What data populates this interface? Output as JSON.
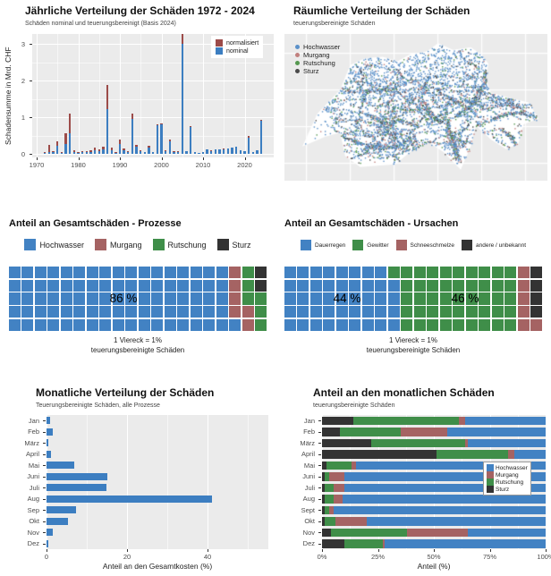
{
  "background": "#FFFFFF",
  "panel_bg": "#EBEBEB",
  "chart_data": [
    {
      "type": "bar",
      "title": "Jährliche Verteilung der Schäden 1972 - 2024",
      "subtitle": "Schäden nominal und teuerungsbereinigt (Basis 2024)",
      "ylabel": "Schadensumme in Mrd. CHF",
      "years": [
        1972,
        1973,
        1974,
        1975,
        1976,
        1977,
        1978,
        1979,
        1980,
        1981,
        1982,
        1983,
        1984,
        1985,
        1986,
        1987,
        1988,
        1989,
        1990,
        1991,
        1992,
        1993,
        1994,
        1995,
        1996,
        1997,
        1998,
        1999,
        2000,
        2001,
        2002,
        2003,
        2004,
        2005,
        2006,
        2007,
        2008,
        2009,
        2010,
        2011,
        2012,
        2013,
        2014,
        2015,
        2016,
        2017,
        2018,
        2019,
        2020,
        2021,
        2022,
        2023,
        2024
      ],
      "series": [
        {
          "name": "normalisiert",
          "color": "#9C4B49",
          "values": [
            0.05,
            0.24,
            0.07,
            0.33,
            0.05,
            0.55,
            1.1,
            0.1,
            0.05,
            0.08,
            0.07,
            0.09,
            0.17,
            0.12,
            0.2,
            1.88,
            0.18,
            0.05,
            0.38,
            0.15,
            0.08,
            1.1,
            0.25,
            0.1,
            0.05,
            0.22,
            0.05,
            0.8,
            0.83,
            0.1,
            0.38,
            0.07,
            0.07,
            3.3,
            0.08,
            0.76,
            0.05,
            0.03,
            0.04,
            0.12,
            0.09,
            0.12,
            0.13,
            0.14,
            0.15,
            0.17,
            0.2,
            0.1,
            0.07,
            0.48,
            0.05,
            0.1,
            0.92
          ]
        },
        {
          "name": "nominal",
          "color": "#3C7EC1",
          "values": [
            0.03,
            0.06,
            0.05,
            0.22,
            0.03,
            0.28,
            0.55,
            0.05,
            0.03,
            0.05,
            0.05,
            0.06,
            0.1,
            0.07,
            0.12,
            1.22,
            0.1,
            0.03,
            0.27,
            0.1,
            0.05,
            0.95,
            0.2,
            0.08,
            0.04,
            0.18,
            0.04,
            0.77,
            0.8,
            0.08,
            0.35,
            0.06,
            0.06,
            3.0,
            0.07,
            0.73,
            0.04,
            0.03,
            0.04,
            0.11,
            0.08,
            0.11,
            0.12,
            0.13,
            0.14,
            0.16,
            0.19,
            0.09,
            0.07,
            0.45,
            0.05,
            0.1,
            0.9
          ]
        }
      ],
      "xticks": [
        1970,
        1980,
        1990,
        2000,
        2010,
        2020
      ],
      "yticks": [
        0,
        1,
        2,
        3
      ],
      "ylim": [
        0,
        3.4
      ]
    },
    {
      "type": "scatter",
      "title": "Räumliche Verteilung der Schäden",
      "subtitle": "teuerungsbereinigte Schäden",
      "description": "Point map of Switzerland, damage locations colored by process",
      "legend": [
        {
          "label": "Hochwasser",
          "color": "#5B91C9"
        },
        {
          "label": "Murgang",
          "color": "#C1807E"
        },
        {
          "label": "Rutschung",
          "color": "#55984F"
        },
        {
          "label": "Sturz",
          "color": "#4A4A4A"
        }
      ],
      "outline": [
        [
          0.05,
          0.79
        ],
        [
          0.11,
          0.55
        ],
        [
          0.2,
          0.38
        ],
        [
          0.24,
          0.2
        ],
        [
          0.3,
          0.15
        ],
        [
          0.37,
          0.14
        ],
        [
          0.43,
          0.17
        ],
        [
          0.48,
          0.12
        ],
        [
          0.545,
          0.1
        ],
        [
          0.59,
          0.04
        ],
        [
          0.65,
          0.09
        ],
        [
          0.72,
          0.07
        ],
        [
          0.76,
          0.12
        ],
        [
          0.79,
          0.19
        ],
        [
          0.78,
          0.3
        ],
        [
          0.8,
          0.4
        ],
        [
          0.88,
          0.44
        ],
        [
          0.95,
          0.47
        ],
        [
          0.99,
          0.59
        ],
        [
          0.93,
          0.63
        ],
        [
          0.91,
          0.77
        ],
        [
          0.86,
          0.81
        ],
        [
          0.8,
          0.74
        ],
        [
          0.74,
          0.64
        ],
        [
          0.72,
          0.79
        ],
        [
          0.68,
          0.96
        ],
        [
          0.61,
          0.83
        ],
        [
          0.55,
          0.76
        ],
        [
          0.48,
          0.83
        ],
        [
          0.42,
          0.92
        ],
        [
          0.28,
          0.94
        ],
        [
          0.22,
          0.86
        ],
        [
          0.2,
          0.69
        ],
        [
          0.14,
          0.72
        ]
      ]
    },
    {
      "type": "waffle",
      "title": "Anteil an Gesamtschäden - Prozesse",
      "grid": {
        "cols": 20,
        "rows": 5
      },
      "categories": [
        {
          "label": "Hochwasser",
          "color": "#4282C3",
          "value": 86
        },
        {
          "label": "Murgang",
          "color": "#A56363",
          "value": 6
        },
        {
          "label": "Rutschung",
          "color": "#3F8E49",
          "value": 6
        },
        {
          "label": "Sturz",
          "color": "#333333",
          "value": 2
        }
      ],
      "annotation": "86 %",
      "caption_line1": "1 Viereck = 1%",
      "caption_line2": "teuerungsbereinigte Schäden"
    },
    {
      "type": "waffle",
      "title": "Anteil an Gesamtschäden - Ursachen",
      "grid": {
        "cols": 20,
        "rows": 5
      },
      "categories": [
        {
          "label": "Dauerregen",
          "color": "#4282C3",
          "value": 44
        },
        {
          "label": "Gewitter",
          "color": "#3F8E49",
          "value": 46
        },
        {
          "label": "Schneeschmelze",
          "color": "#A56363",
          "value": 6
        },
        {
          "label": "andere / unbekannt",
          "color": "#333333",
          "value": 4
        }
      ],
      "annotations": [
        "44 %",
        "46 %"
      ],
      "caption_line1": "1 Viereck = 1%",
      "caption_line2": "teuerungsbereinigte Schäden"
    },
    {
      "type": "bar",
      "title": "Monatliche Verteilung der Schäden",
      "subtitle": "Teuerungsbereinigte Schäden, alle Prozesse",
      "xlabel": "Anteil an den Gesamtkosten (%)",
      "categories": [
        "Jan",
        "Feb",
        "März",
        "April",
        "Mai",
        "Juni",
        "Juli",
        "Aug",
        "Sep",
        "Okt",
        "Nov",
        "Dez"
      ],
      "values": [
        0.9,
        1.6,
        0.4,
        1.2,
        6.9,
        15.1,
        14.9,
        41,
        7.3,
        5.3,
        1.6,
        0.5
      ],
      "bar_color": "#3C7EC1",
      "xticks": [
        0,
        20,
        40
      ],
      "xlim": [
        0,
        55
      ]
    },
    {
      "type": "bar",
      "title": "Anteil an den monatlichen Schäden",
      "subtitle": "teuerungsbereinigte Schäden",
      "xlabel": "Anteil (%)",
      "categories": [
        "Jan",
        "Feb",
        "März",
        "April",
        "Mai",
        "Juni",
        "Juli",
        "Aug",
        "Sept",
        "Okt",
        "Nov",
        "Dez"
      ],
      "stack_order": [
        "Sturz",
        "Rutschung",
        "Murgang",
        "Hochwasser"
      ],
      "series": [
        {
          "name": "Sturz",
          "color": "#333333",
          "values": [
            14,
            8,
            22,
            51,
            2,
            1,
            1,
            1,
            1,
            1,
            4,
            10
          ]
        },
        {
          "name": "Rutschung",
          "color": "#3F8E49",
          "values": [
            47,
            27,
            42,
            32,
            11,
            2,
            4,
            4,
            2,
            5,
            34,
            17
          ]
        },
        {
          "name": "Murgang",
          "color": "#A56363",
          "values": [
            3,
            21,
            1,
            3,
            2,
            7,
            5,
            4,
            2,
            14,
            27,
            1
          ]
        },
        {
          "name": "Hochwasser",
          "color": "#4282C3",
          "values": [
            36,
            44,
            35,
            14,
            85,
            90,
            90,
            91,
            95,
            80,
            35,
            72
          ]
        }
      ],
      "legend": [
        {
          "label": "Hochwasser",
          "color": "#4282C3"
        },
        {
          "label": "Murgang",
          "color": "#A56363"
        },
        {
          "label": "Rutschung",
          "color": "#3F8E49"
        },
        {
          "label": "Sturz",
          "color": "#333333"
        }
      ],
      "xticks": [
        "0%",
        "25%",
        "50%",
        "75%",
        "100%"
      ]
    }
  ]
}
